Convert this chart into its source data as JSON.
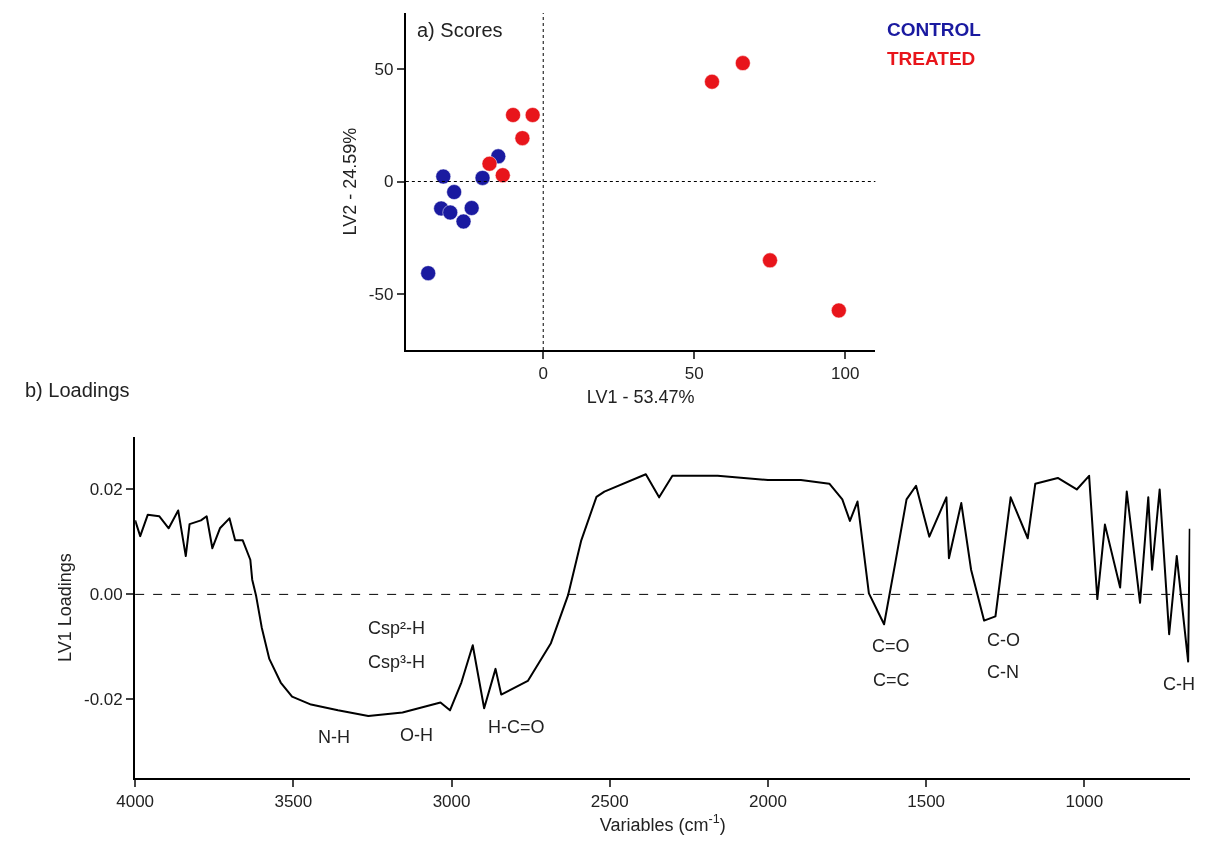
{
  "chart_data": [
    {
      "type": "scatter",
      "title": "a) Scores",
      "xlabel": "LV1 - 53.47%",
      "ylabel": "LV2 - 24.59%",
      "xlim": [
        -45.5,
        110
      ],
      "ylim": [
        -75,
        75
      ],
      "xticks": [
        0,
        50,
        100
      ],
      "yticks": [
        -50,
        0,
        50
      ],
      "legend": "top right",
      "marker": "circle",
      "ref_lines": [
        {
          "axis": "x",
          "value": 0,
          "line_style": "dotted"
        },
        {
          "axis": "y",
          "value": 0,
          "line_style": "dotted"
        }
      ],
      "series": [
        {
          "name": "CONTROL",
          "color": "#1a1aa0",
          "x": [
            -38.1,
            -33.1,
            -29.5,
            -33.8,
            -30.8,
            -26.4,
            -23.7,
            -20.1,
            -14.9
          ],
          "values": [
            -40.8,
            2.2,
            -4.7,
            -12.0,
            -13.8,
            -17.8,
            -11.8,
            1.6,
            11.2
          ]
        },
        {
          "name": "TREATED",
          "color": "#e8151b",
          "x": [
            -17.8,
            -13.4,
            -10.0,
            -3.5,
            -6.9,
            55.9,
            66.1,
            75.1,
            97.9
          ],
          "values": [
            7.9,
            2.8,
            29.6,
            29.6,
            19.3,
            44.4,
            52.7,
            -35.1,
            -57.4
          ]
        }
      ]
    },
    {
      "type": "line",
      "title": "b) Loadings",
      "xlabel": "Variables (cm$^{-1}$)",
      "ylabel": "LV1 Loadings",
      "xlim": [
        4000,
        665
      ],
      "ylim": [
        -0.035,
        0.03
      ],
      "xticks": [
        4000,
        3500,
        3000,
        2500,
        2000,
        1500,
        1000
      ],
      "yticks": [
        -0.02,
        {
          "value": 0,
          "label": "0.00"
        },
        0.02
      ],
      "marker": "none",
      "line_style": "solid",
      "ref_lines": [
        {
          "axis": "y",
          "value": 0,
          "line_style": "dashed"
        }
      ],
      "series": [
        {
          "color": "#000000",
          "x": [
            4000,
            3984,
            3960,
            3924,
            3894,
            3864,
            3840,
            3828,
            3792,
            3774,
            3756,
            3732,
            3702,
            3684,
            3660,
            3636,
            3630,
            3618,
            3600,
            3576,
            3540,
            3504,
            3444,
            3359,
            3263,
            3155,
            3035,
            3005,
            2969,
            2933,
            2897,
            2861,
            2843,
            2759,
            2686,
            2632,
            2590,
            2542,
            2517,
            2386,
            2344,
            2302,
            2159,
            2000,
            1896,
            1806,
            1765,
            1741,
            1717,
            1681,
            1633,
            1597,
            1562,
            1532,
            1490,
            1436,
            1428,
            1389,
            1358,
            1317,
            1281,
            1233,
            1179,
            1155,
            1084,
            1024,
            985,
            959,
            935,
            887,
            866,
            824,
            798,
            786,
            762,
            732,
            708,
            672,
            667
          ],
          "values": [
            0.0141,
            0.0111,
            0.0152,
            0.0149,
            0.0126,
            0.016,
            0.0073,
            0.0134,
            0.0141,
            0.0149,
            0.0088,
            0.0126,
            0.0145,
            0.0103,
            0.0103,
            0.0066,
            0.0028,
            -0.0002,
            -0.0063,
            -0.0123,
            -0.0168,
            -0.0195,
            -0.021,
            -0.0221,
            -0.0232,
            -0.0225,
            -0.0206,
            -0.0221,
            -0.0168,
            -0.0097,
            -0.0217,
            -0.0142,
            -0.0191,
            -0.0165,
            -0.0093,
            -0.0002,
            0.0103,
            0.0186,
            0.0196,
            0.0229,
            0.0185,
            0.0226,
            0.0226,
            0.0218,
            0.0218,
            0.0211,
            0.0181,
            0.014,
            0.0177,
            0.0002,
            -0.0057,
            0.0062,
            0.0181,
            0.0207,
            0.011,
            0.0185,
            0.0069,
            0.0174,
            0.0047,
            -0.005,
            -0.0042,
            0.0185,
            0.0107,
            0.0211,
            0.0222,
            0.02,
            0.0226,
            -0.0009,
            0.0133,
            0.0013,
            0.0196,
            -0.0016,
            0.0185,
            0.0047,
            0.02,
            -0.0076,
            0.0073,
            -0.0128,
            0.0125
          ]
        }
      ],
      "annotations": [
        "Csp²-H",
        "Csp³-H",
        "N-H",
        "O-H",
        "H-C=O",
        "C=O",
        "C=C",
        "C-O",
        "C-N",
        "C-H"
      ]
    }
  ]
}
